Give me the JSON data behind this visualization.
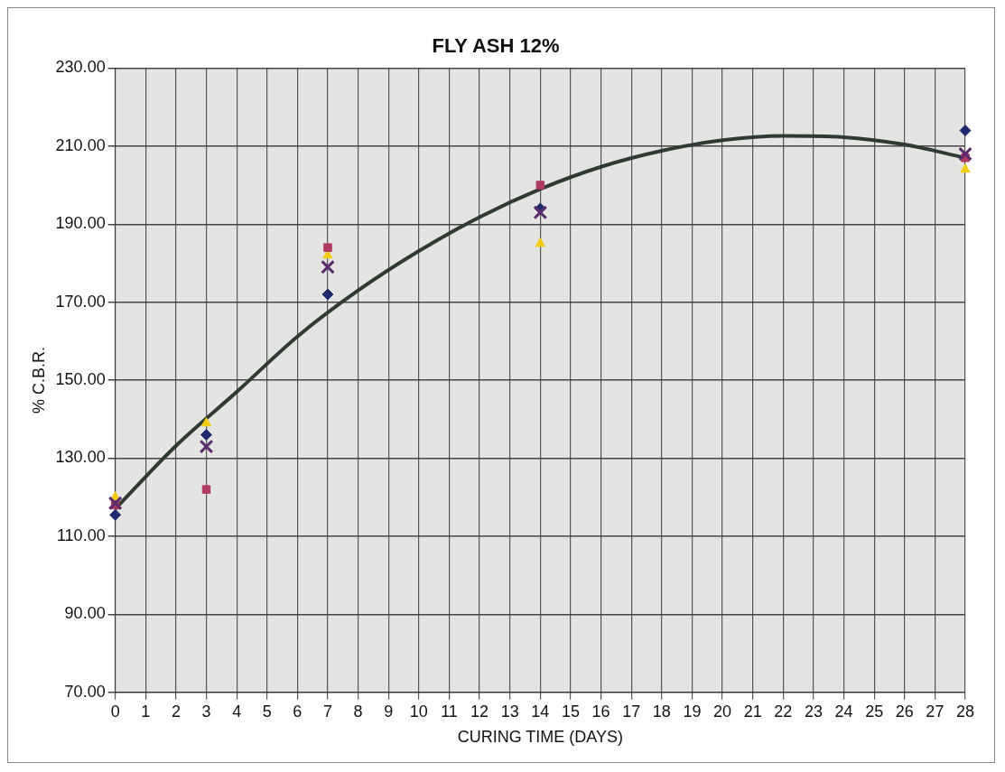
{
  "chart_data": {
    "type": "scatter",
    "title": "FLY ASH 12%",
    "xlabel": "CURING TIME (DAYS)",
    "ylabel": "% C.B.R.",
    "x": [
      0,
      3,
      7,
      14,
      28
    ],
    "series": [
      {
        "color": "#1f2a6e",
        "marker": "diamond",
        "values": [
          115.5,
          136,
          172,
          194,
          214
        ]
      },
      {
        "color": "#b03a60",
        "marker": "square",
        "values": [
          118,
          122,
          184,
          200,
          207
        ]
      },
      {
        "color": "#f2cc10",
        "marker": "triangle",
        "values": [
          120,
          139,
          182,
          185,
          204
        ]
      },
      {
        "color": "#5a2d6e",
        "marker": "cross",
        "values": [
          118.5,
          133,
          179,
          193,
          208
        ]
      },
      {
        "type": "line",
        "color": "#2f3a33",
        "marker": "none",
        "line_style": "solid",
        "x": [
          0,
          2,
          4,
          6,
          8,
          10,
          12,
          14,
          16,
          18,
          20,
          22,
          24,
          26,
          28
        ],
        "values": [
          117,
          133.2,
          147,
          161.2,
          173,
          183.1,
          191.8,
          199,
          204.7,
          208.8,
          211.5,
          212.6,
          212.3,
          210.4,
          207
        ]
      }
    ],
    "xlim": [
      0,
      28
    ],
    "xticks": [
      0,
      1,
      2,
      3,
      4,
      5,
      6,
      7,
      8,
      9,
      10,
      11,
      12,
      13,
      14,
      15,
      16,
      17,
      18,
      19,
      20,
      21,
      22,
      23,
      24,
      25,
      26,
      27,
      28
    ],
    "ylim": [
      70,
      230
    ],
    "yticks": [
      {
        "value": 70,
        "label": "70.00"
      },
      {
        "value": 90,
        "label": "90.00"
      },
      {
        "value": 110,
        "label": "110.00"
      },
      {
        "value": 130,
        "label": "130.00"
      },
      {
        "value": 150,
        "label": "150.00"
      },
      {
        "value": 170,
        "label": "170.00"
      },
      {
        "value": 190,
        "label": "190.00"
      },
      {
        "value": 210,
        "label": "210.00"
      },
      {
        "value": 230,
        "label": "230.00"
      }
    ],
    "grid": true,
    "legend": false
  }
}
